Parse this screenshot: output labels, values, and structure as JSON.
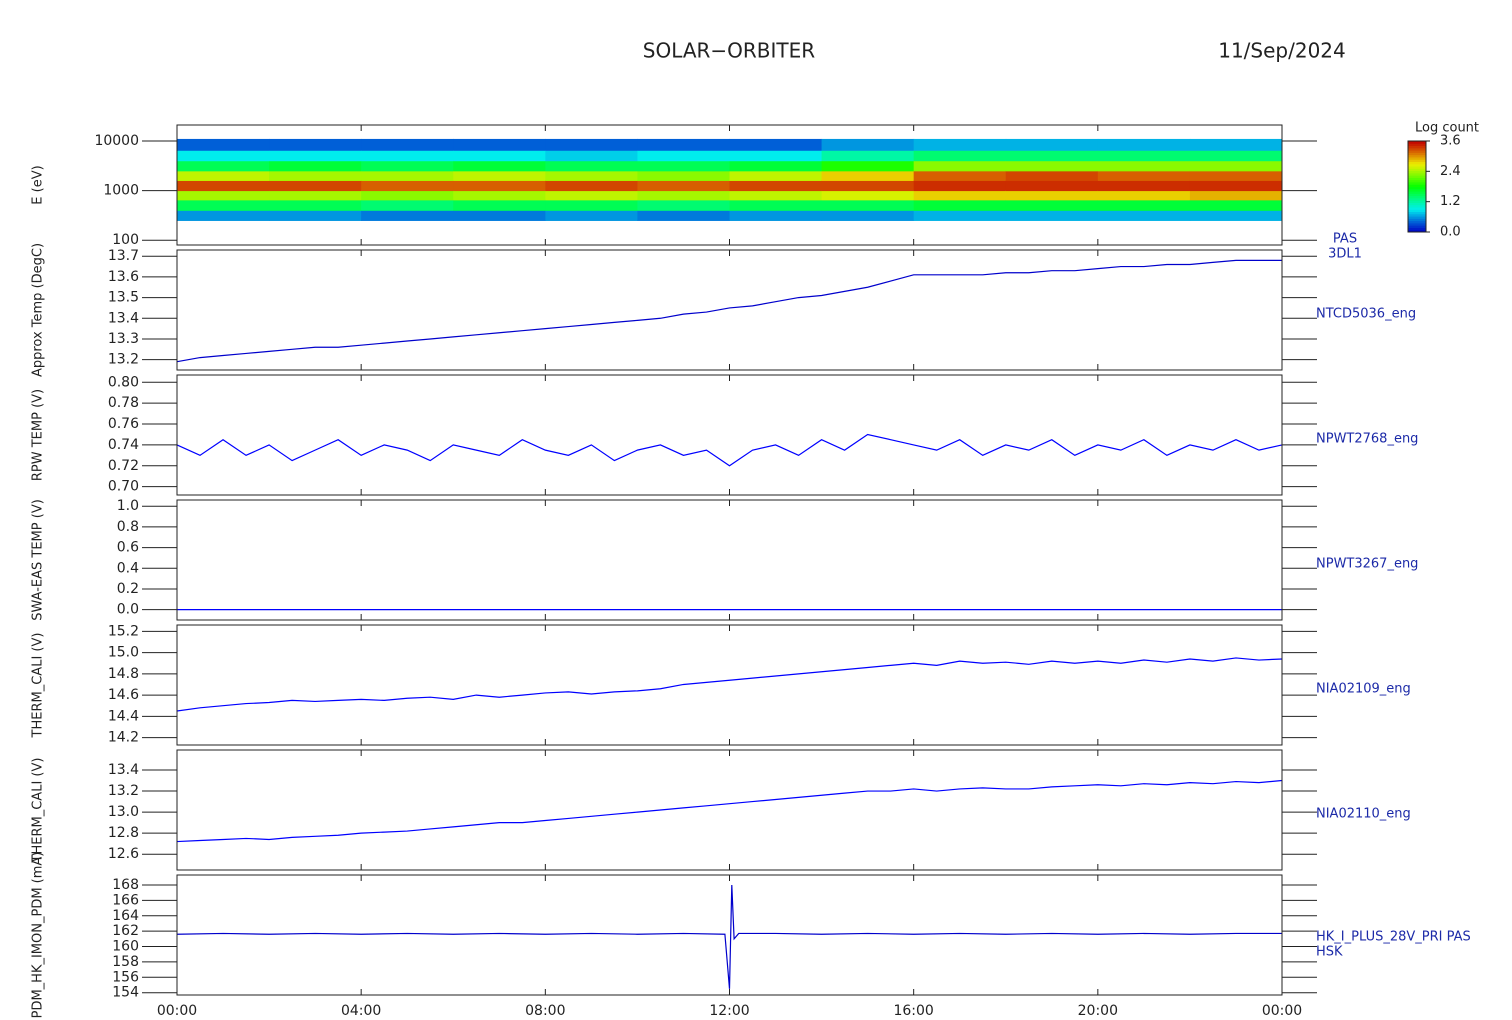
{
  "title": "SOLAR−ORBITER",
  "date": "11/Sep/2024",
  "chart_data": [
    {
      "type": "heatmap",
      "log_y": true,
      "ylim": [
        80,
        21000
      ],
      "yticks": [
        100,
        1000,
        10000
      ],
      "xlim": [
        0,
        24
      ],
      "ylabel": "E (eV)",
      "labels": [
        "PAS",
        "3DL1"
      ],
      "xbins": [
        0,
        2,
        4,
        6,
        8,
        10,
        12,
        14,
        16,
        18,
        20,
        22,
        24
      ],
      "ybins": [
        250,
        400,
        650,
        1000,
        1600,
        2500,
        4000,
        6500,
        11000
      ],
      "z": [
        [
          0.6,
          1.5,
          2.4,
          3.3,
          2.5,
          1.5,
          0.9,
          0.4
        ],
        [
          0.6,
          1.5,
          2.4,
          3.3,
          2.4,
          1.6,
          0.9,
          0.4
        ],
        [
          0.5,
          1.4,
          2.3,
          3.2,
          2.4,
          1.5,
          0.9,
          0.4
        ],
        [
          0.5,
          1.5,
          2.4,
          3.2,
          2.5,
          1.6,
          0.9,
          0.4
        ],
        [
          0.6,
          1.5,
          2.5,
          3.3,
          2.4,
          1.5,
          0.8,
          0.4
        ],
        [
          0.5,
          1.4,
          2.4,
          3.2,
          2.3,
          1.5,
          0.9,
          0.4
        ],
        [
          0.6,
          1.5,
          2.5,
          3.3,
          2.5,
          1.6,
          0.9,
          0.4
        ],
        [
          0.6,
          1.5,
          2.6,
          3.3,
          2.8,
          1.9,
          1.2,
          0.6
        ],
        [
          0.7,
          1.6,
          2.8,
          3.4,
          3.2,
          2.3,
          1.4,
          0.7
        ],
        [
          0.7,
          1.6,
          2.8,
          3.4,
          3.3,
          2.3,
          1.4,
          0.7
        ],
        [
          0.7,
          1.6,
          2.8,
          3.4,
          3.2,
          2.3,
          1.4,
          0.7
        ],
        [
          0.7,
          1.6,
          2.9,
          3.4,
          3.2,
          2.3,
          1.4,
          0.7
        ]
      ],
      "colorbar": {
        "title": "Log count",
        "lim": [
          0,
          3.6
        ],
        "ticks": [
          {
            "value": 0,
            "label": "0.0"
          },
          1.2,
          2.4,
          3.6
        ]
      }
    },
    {
      "type": "line",
      "ylim": [
        13.15,
        13.73
      ],
      "yticks": [
        13.2,
        13.3,
        13.4,
        13.5,
        13.6,
        13.7
      ],
      "xlim": [
        0,
        24
      ],
      "ylabel": "Approx Temp (DegC)",
      "labels": [
        "NTCD5036_eng"
      ],
      "x": [
        0,
        0.5,
        1,
        1.5,
        2,
        2.5,
        3,
        3.5,
        4,
        4.5,
        5,
        5.5,
        6,
        6.5,
        7,
        7.5,
        8,
        8.5,
        9,
        9.5,
        10,
        10.5,
        11,
        11.5,
        12,
        12.5,
        13,
        13.5,
        14,
        14.5,
        15,
        15.5,
        16,
        16.5,
        17,
        17.5,
        18,
        18.5,
        19,
        19.5,
        20,
        20.5,
        21,
        21.5,
        22,
        22.5,
        23,
        23.5,
        24
      ],
      "series": [
        {
          "color": "#0000cc",
          "values": [
            13.19,
            13.21,
            13.22,
            13.23,
            13.24,
            13.25,
            13.26,
            13.26,
            13.27,
            13.28,
            13.29,
            13.3,
            13.31,
            13.32,
            13.33,
            13.34,
            13.35,
            13.36,
            13.37,
            13.38,
            13.39,
            13.4,
            13.42,
            13.43,
            13.45,
            13.46,
            13.48,
            13.5,
            13.51,
            13.53,
            13.55,
            13.58,
            13.61,
            13.61,
            13.61,
            13.61,
            13.62,
            13.62,
            13.63,
            13.63,
            13.64,
            13.65,
            13.65,
            13.66,
            13.66,
            13.67,
            13.68,
            13.68,
            13.68
          ]
        }
      ]
    },
    {
      "type": "line",
      "ylim": [
        0.692,
        0.807
      ],
      "yticks": [
        {
          "value": 0.7,
          "label": "0.70"
        },
        0.72,
        0.74,
        0.76,
        0.78,
        {
          "value": 0.8,
          "label": "0.80"
        }
      ],
      "xlim": [
        0,
        24
      ],
      "ylabel": "RPW TEMP (V)",
      "labels": [
        "NPWT2768_eng"
      ],
      "x": [
        0,
        0.5,
        1,
        1.5,
        2,
        2.5,
        3,
        3.5,
        4,
        4.5,
        5,
        5.5,
        6,
        6.5,
        7,
        7.5,
        8,
        8.5,
        9,
        9.5,
        10,
        10.5,
        11,
        11.5,
        12,
        12.5,
        13,
        13.5,
        14,
        14.5,
        15,
        15.5,
        16,
        16.5,
        17,
        17.5,
        18,
        18.5,
        19,
        19.5,
        20,
        20.5,
        21,
        21.5,
        22,
        22.5,
        23,
        23.5,
        24
      ],
      "series": [
        {
          "color": "#0000ff",
          "values": [
            0.74,
            0.73,
            0.745,
            0.73,
            0.74,
            0.725,
            0.735,
            0.745,
            0.73,
            0.74,
            0.735,
            0.725,
            0.74,
            0.735,
            0.73,
            0.745,
            0.735,
            0.73,
            0.74,
            0.725,
            0.735,
            0.74,
            0.73,
            0.735,
            0.72,
            0.735,
            0.74,
            0.73,
            0.745,
            0.735,
            0.75,
            0.745,
            0.74,
            0.735,
            0.745,
            0.73,
            0.74,
            0.735,
            0.745,
            0.73,
            0.74,
            0.735,
            0.745,
            0.73,
            0.74,
            0.735,
            0.745,
            0.735,
            0.74
          ]
        }
      ]
    },
    {
      "type": "line",
      "ylim": [
        -0.1,
        1.06
      ],
      "yticks": [
        {
          "value": 0,
          "label": "0.0"
        },
        0.2,
        0.4,
        0.6,
        0.8,
        {
          "value": 1,
          "label": "1.0"
        }
      ],
      "xlim": [
        0,
        24
      ],
      "ylabel": "SWA-EAS TEMP (V)",
      "labels": [
        "NPWT3267_eng"
      ],
      "x": [
        0,
        0.5,
        1,
        1.5,
        2,
        2.5,
        3,
        3.5,
        4,
        4.5,
        5,
        5.5,
        6,
        6.5,
        7,
        7.5,
        8,
        8.5,
        9,
        9.5,
        10,
        10.5,
        11,
        11.5,
        12,
        12.5,
        13,
        13.5,
        14,
        14.5,
        15,
        15.5,
        16,
        16.5,
        17,
        17.5,
        18,
        18.5,
        19,
        19.5,
        20,
        20.5,
        21,
        21.5,
        22,
        22.5,
        23,
        23.5,
        24
      ],
      "series": [
        {
          "color": "#0000ff",
          "values": [
            0,
            0,
            0,
            0,
            0,
            0,
            0,
            0,
            0,
            0,
            0,
            0,
            0,
            0,
            0,
            0,
            0,
            0,
            0,
            0,
            0,
            0,
            0,
            0,
            0,
            0,
            0,
            0,
            0,
            0,
            0,
            0,
            0,
            0,
            0,
            0,
            0,
            0,
            0,
            0,
            0,
            0,
            0,
            0,
            0,
            0,
            0,
            0,
            0
          ]
        }
      ]
    },
    {
      "type": "line",
      "ylim": [
        14.13,
        15.26
      ],
      "yticks": [
        14.2,
        14.4,
        14.6,
        14.8,
        {
          "value": 15,
          "label": "15.0"
        },
        15.2
      ],
      "xlim": [
        0,
        24
      ],
      "ylabel": "THERM_CALI (V)",
      "labels": [
        "NIA02109_eng"
      ],
      "x": [
        0,
        0.5,
        1,
        1.5,
        2,
        2.5,
        3,
        3.5,
        4,
        4.5,
        5,
        5.5,
        6,
        6.5,
        7,
        7.5,
        8,
        8.5,
        9,
        9.5,
        10,
        10.5,
        11,
        11.5,
        12,
        12.5,
        13,
        13.5,
        14,
        14.5,
        15,
        15.5,
        16,
        16.5,
        17,
        17.5,
        18,
        18.5,
        19,
        19.5,
        20,
        20.5,
        21,
        21.5,
        22,
        22.5,
        23,
        23.5,
        24
      ],
      "series": [
        {
          "color": "#0000ff",
          "values": [
            14.45,
            14.48,
            14.5,
            14.52,
            14.53,
            14.55,
            14.54,
            14.55,
            14.56,
            14.55,
            14.57,
            14.58,
            14.56,
            14.6,
            14.58,
            14.6,
            14.62,
            14.63,
            14.61,
            14.63,
            14.64,
            14.66,
            14.7,
            14.72,
            14.74,
            14.76,
            14.78,
            14.8,
            14.82,
            14.84,
            14.86,
            14.88,
            14.9,
            14.88,
            14.92,
            14.9,
            14.91,
            14.89,
            14.92,
            14.9,
            14.92,
            14.9,
            14.93,
            14.91,
            14.94,
            14.92,
            14.95,
            14.93,
            14.94
          ]
        }
      ]
    },
    {
      "type": "line",
      "ylim": [
        12.45,
        13.59
      ],
      "yticks": [
        12.6,
        12.8,
        {
          "value": 13,
          "label": "13.0"
        },
        13.2,
        13.4
      ],
      "xlim": [
        0,
        24
      ],
      "ylabel": "THERM_CALI (V)",
      "labels": [
        "NIA02110_eng"
      ],
      "x": [
        0,
        0.5,
        1,
        1.5,
        2,
        2.5,
        3,
        3.5,
        4,
        4.5,
        5,
        5.5,
        6,
        6.5,
        7,
        7.5,
        8,
        8.5,
        9,
        9.5,
        10,
        10.5,
        11,
        11.5,
        12,
        12.5,
        13,
        13.5,
        14,
        14.5,
        15,
        15.5,
        16,
        16.5,
        17,
        17.5,
        18,
        18.5,
        19,
        19.5,
        20,
        20.5,
        21,
        21.5,
        22,
        22.5,
        23,
        23.5,
        24
      ],
      "series": [
        {
          "color": "#0000ff",
          "values": [
            12.72,
            12.73,
            12.74,
            12.75,
            12.74,
            12.76,
            12.77,
            12.78,
            12.8,
            12.81,
            12.82,
            12.84,
            12.86,
            12.88,
            12.9,
            12.9,
            12.92,
            12.94,
            12.96,
            12.98,
            13.0,
            13.02,
            13.04,
            13.06,
            13.08,
            13.1,
            13.12,
            13.14,
            13.16,
            13.18,
            13.2,
            13.2,
            13.22,
            13.2,
            13.22,
            13.23,
            13.22,
            13.22,
            13.24,
            13.25,
            13.26,
            13.25,
            13.27,
            13.26,
            13.28,
            13.27,
            13.29,
            13.28,
            13.3
          ]
        }
      ]
    },
    {
      "type": "line",
      "ylim": [
        153.7,
        169.3
      ],
      "yticks": [
        154,
        156,
        158,
        160,
        162,
        164,
        166,
        168
      ],
      "xlim": [
        0,
        24
      ],
      "ylabel": "PDM_HK_IMON_PDM (mA)",
      "labels": [
        "HK_I_PLUS_28V_PRI PAS",
        "HSK"
      ],
      "x": [
        0,
        1,
        2,
        3,
        4,
        5,
        6,
        7,
        8,
        9,
        10,
        11,
        11.9,
        12.0,
        12.05,
        12.1,
        12.2,
        13,
        14,
        15,
        16,
        17,
        18,
        19,
        20,
        21,
        22,
        23,
        24
      ],
      "series": [
        {
          "color": "#0000cc",
          "values": [
            161.6,
            161.7,
            161.6,
            161.7,
            161.6,
            161.7,
            161.6,
            161.7,
            161.6,
            161.7,
            161.6,
            161.7,
            161.6,
            154.5,
            168,
            161,
            161.7,
            161.7,
            161.6,
            161.7,
            161.6,
            161.7,
            161.6,
            161.7,
            161.6,
            161.7,
            161.6,
            161.7,
            161.7
          ]
        }
      ],
      "xticks": [
        {
          "value": 0,
          "label": "00:00"
        },
        {
          "value": 4,
          "label": "04:00"
        },
        {
          "value": 8,
          "label": "08:00"
        },
        {
          "value": 12,
          "label": "12:00"
        },
        {
          "value": 16,
          "label": "16:00"
        },
        {
          "value": 20,
          "label": "20:00"
        },
        {
          "value": 24,
          "label": "00:00"
        }
      ]
    }
  ]
}
